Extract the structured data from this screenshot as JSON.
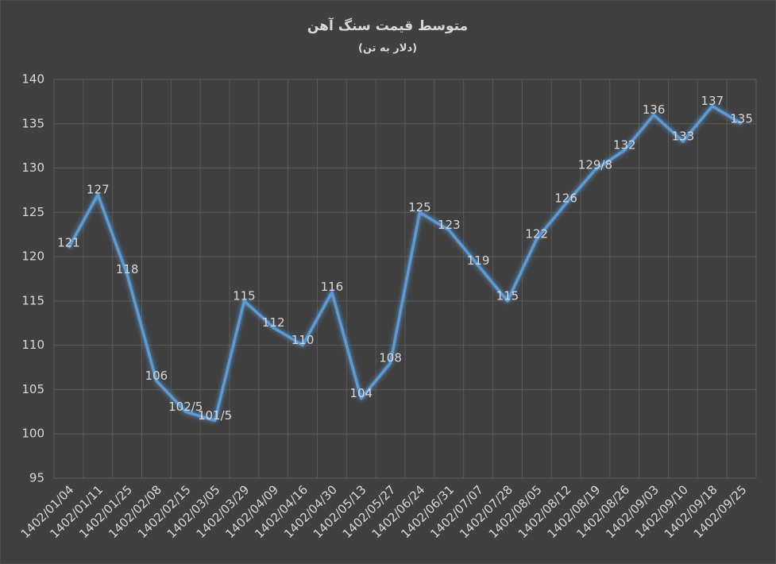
{
  "chart_data": {
    "type": "line",
    "title": "متوسط قیمت سنگ آهن",
    "subtitle": "(دلار به تن)",
    "categories": [
      "1402/01/04",
      "1402/01/11",
      "1402/01/25",
      "1402/02/08",
      "1402/02/15",
      "1402/03/05",
      "1402/03/29",
      "1402/04/09",
      "1402/04/16",
      "1402/04/30",
      "1402/05/13",
      "1402/05/27",
      "1402/06/24",
      "1402/06/31",
      "1402/07/07",
      "1402/07/28",
      "1402/08/05",
      "1402/08/12",
      "1402/08/19",
      "1402/08/26",
      "1402/09/03",
      "1402/09/10",
      "1402/09/18",
      "1402/09/25"
    ],
    "values": [
      121,
      127,
      118,
      106,
      102.5,
      101.5,
      115,
      112,
      110,
      116,
      104,
      108,
      125,
      123,
      119,
      115,
      122,
      126,
      129.8,
      132,
      136,
      133,
      137,
      135
    ],
    "value_labels": [
      "121",
      "127",
      "118",
      "106",
      "102/5",
      "101/5",
      "115",
      "112",
      "110",
      "116",
      "104",
      "108",
      "125",
      "123",
      "119",
      "115",
      "122",
      "126",
      "129/8",
      "132",
      "136",
      "133",
      "137",
      "135"
    ],
    "color": "#5b9bd5",
    "ylim": [
      95,
      140
    ],
    "yticks": [
      95,
      100,
      105,
      110,
      115,
      120,
      125,
      130,
      135,
      140
    ],
    "grid": true
  }
}
